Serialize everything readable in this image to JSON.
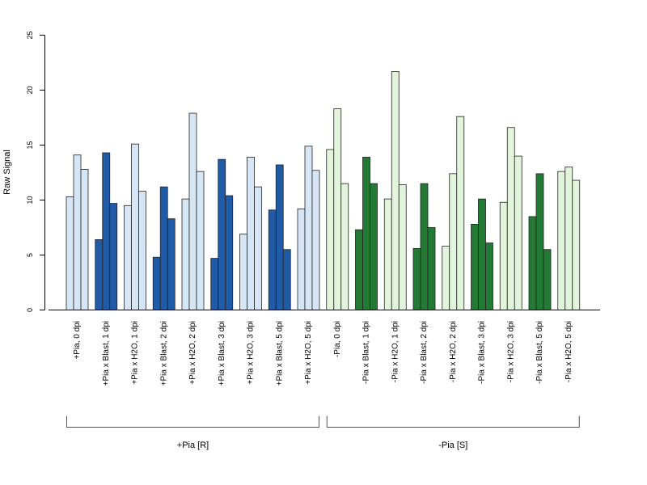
{
  "chart_data": {
    "type": "bar",
    "ylabel": "Raw Signal",
    "yticks": [
      0,
      5,
      10,
      15,
      20,
      25
    ],
    "ylim": [
      0,
      25
    ],
    "grid": false,
    "colors": {
      "light_blue": "#d6e6f4",
      "dark_blue": "#1f5ba6",
      "light_green": "#e2f4dc",
      "dark_green": "#237a35"
    },
    "categories": [
      {
        "label": "+Pia, 0 dpi",
        "values": [
          10.3,
          14.1,
          12.8
        ],
        "color": "light_blue"
      },
      {
        "label": "+Pia x Blast, 1 dpi",
        "values": [
          6.4,
          14.3,
          9.7
        ],
        "color": "dark_blue"
      },
      {
        "label": "+Pia x H2O, 1 dpi",
        "values": [
          9.5,
          15.1,
          10.8
        ],
        "color": "light_blue"
      },
      {
        "label": "+Pia x Blast, 2 dpi",
        "values": [
          4.8,
          11.2,
          8.3
        ],
        "color": "dark_blue"
      },
      {
        "label": "+Pia x H2O, 2 dpi",
        "values": [
          10.1,
          17.9,
          12.6
        ],
        "color": "light_blue"
      },
      {
        "label": "+Pia x Blast, 3 dpi",
        "values": [
          4.7,
          13.7,
          10.4
        ],
        "color": "dark_blue"
      },
      {
        "label": "+Pia x H2O, 3 dpi",
        "values": [
          6.9,
          13.9,
          11.2
        ],
        "color": "light_blue"
      },
      {
        "label": "+Pia x Blast, 5 dpi",
        "values": [
          9.1,
          13.2,
          5.5
        ],
        "color": "dark_blue"
      },
      {
        "label": "+Pia x H2O, 5 dpi",
        "values": [
          9.2,
          14.9,
          12.7
        ],
        "color": "light_blue"
      },
      {
        "label": "-Pia, 0 dpi",
        "values": [
          14.6,
          18.3,
          11.5
        ],
        "color": "light_green"
      },
      {
        "label": "-Pia x Blast, 1 dpi",
        "values": [
          7.3,
          13.9,
          11.5
        ],
        "color": "dark_green"
      },
      {
        "label": "-Pia x H2O, 1 dpi",
        "values": [
          10.1,
          21.7,
          11.4
        ],
        "color": "light_green"
      },
      {
        "label": "-Pia x Blast, 2 dpi",
        "values": [
          5.6,
          11.5,
          7.5
        ],
        "color": "dark_green"
      },
      {
        "label": "-Pia x H2O, 2 dpi",
        "values": [
          5.8,
          12.4,
          17.6
        ],
        "color": "light_green"
      },
      {
        "label": "-Pia x Blast, 3 dpi",
        "values": [
          7.8,
          10.1,
          6.1
        ],
        "color": "dark_green"
      },
      {
        "label": "-Pia x H2O, 3 dpi",
        "values": [
          9.8,
          16.6,
          14.0
        ],
        "color": "light_green"
      },
      {
        "label": "-Pia x Blast, 5 dpi",
        "values": [
          8.5,
          12.4,
          5.5
        ],
        "color": "dark_green"
      },
      {
        "label": "-Pia x H2O, 5 dpi",
        "values": [
          12.6,
          13.0,
          11.8
        ],
        "color": "light_green"
      }
    ],
    "groups": [
      {
        "label": "+Pia [R]",
        "from": 0,
        "to": 8
      },
      {
        "label": "-Pia [S]",
        "from": 9,
        "to": 17
      }
    ]
  }
}
